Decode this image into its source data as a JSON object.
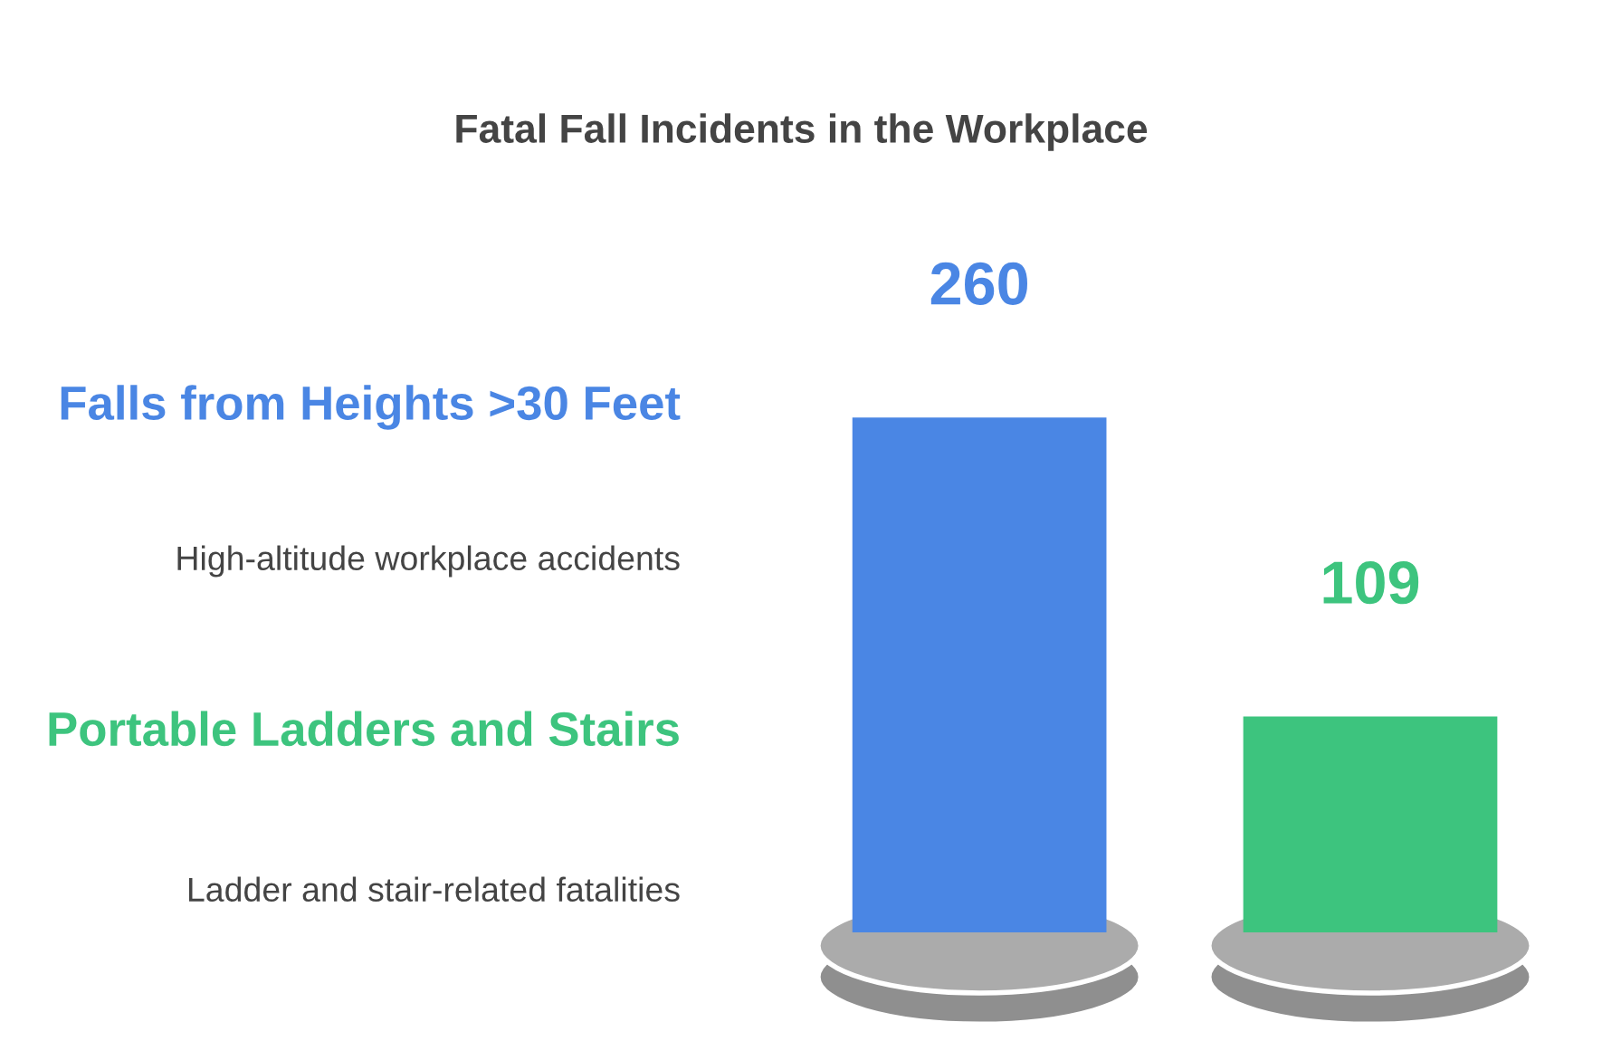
{
  "chart_data": {
    "type": "bar",
    "title": "Fatal Fall Incidents in the Workplace",
    "categories": [
      null,
      null
    ],
    "values": [
      260,
      109
    ],
    "colors": [
      "#4a86e4",
      "#3dc47e"
    ],
    "annotations": [
      "Falls from Heights >30 Feet",
      "High-altitude workplace accidents",
      "Portable Ladders and Stairs",
      "Ladder and stair-related fatalities"
    ],
    "data_labels": true,
    "grid": false
  }
}
